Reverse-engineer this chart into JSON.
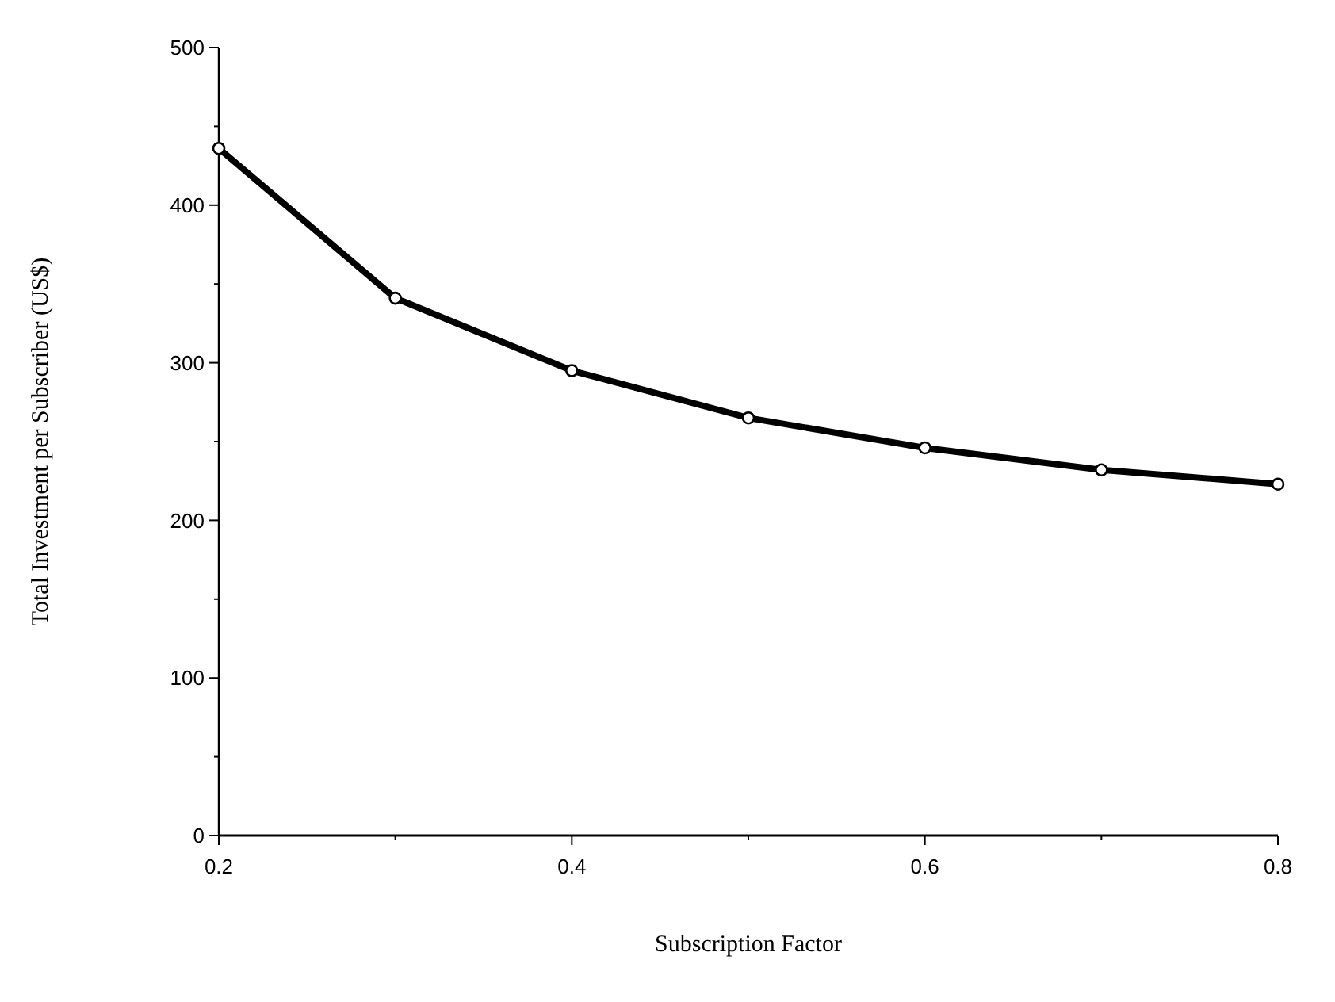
{
  "chart_data": {
    "type": "line",
    "xlabel": "Subscription Factor",
    "ylabel": "Total Investment per Subscriber (US$)",
    "x": [
      0.2,
      0.3,
      0.4,
      0.5,
      0.6,
      0.7,
      0.8
    ],
    "series": [
      {
        "color": "#000000",
        "values": [
          436,
          341,
          295,
          265,
          246,
          232,
          223
        ]
      }
    ],
    "xlim": [
      0.2,
      0.8
    ],
    "ylim": [
      0,
      500
    ],
    "xticks": [
      0.2,
      {
        "value": 0.3,
        "label": null
      },
      0.4,
      {
        "value": 0.5,
        "label": null
      },
      0.6,
      {
        "value": 0.7,
        "label": null
      },
      0.8
    ],
    "yticks": [
      0,
      {
        "value": 50,
        "label": null
      },
      100,
      {
        "value": 150,
        "label": null
      },
      200,
      {
        "value": 250,
        "label": null
      },
      300,
      {
        "value": 350,
        "label": null
      },
      400,
      {
        "value": 450,
        "label": null
      },
      500
    ],
    "marker": "circle",
    "line_style": "solid"
  }
}
